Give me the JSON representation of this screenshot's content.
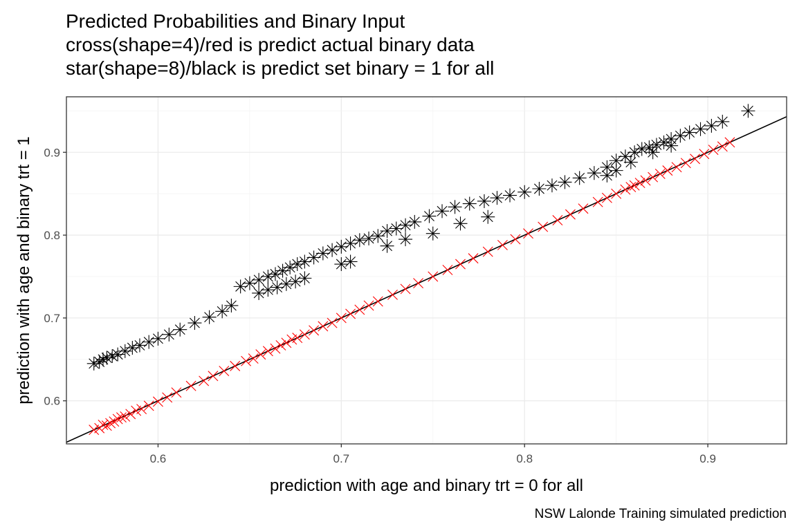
{
  "title_lines": [
    "Predicted Probabilities and Binary Input",
    "cross(shape=4)/red is predict actual binary data",
    "star(shape=8)/black is predict set binary = 1 for all"
  ],
  "chart_data": {
    "type": "scatter",
    "xlabel": "prediction with age and binary trt = 0 for all",
    "ylabel": "prediction with age and binary trt = 1",
    "caption": "NSW Lalonde Training simulated prediction",
    "xlim": [
      0.55,
      0.943
    ],
    "ylim": [
      0.548,
      0.967
    ],
    "x_ticks": [
      0.6,
      0.7,
      0.8,
      0.9
    ],
    "x_tick_labels": [
      "0.6",
      "0.7",
      "0.8",
      "0.9"
    ],
    "y_ticks": [
      0.6,
      0.7,
      0.8,
      0.9
    ],
    "y_tick_labels": [
      "0.6",
      "0.7",
      "0.8",
      "0.9"
    ],
    "grid": true,
    "reference_line": {
      "type": "identity",
      "slope": 1,
      "intercept": 0,
      "color": "#000000"
    },
    "series": [
      {
        "marker": "cross",
        "color": "#ff0000",
        "points": [
          [
            0.565,
            0.565
          ],
          [
            0.568,
            0.567
          ],
          [
            0.57,
            0.571
          ],
          [
            0.572,
            0.57
          ],
          [
            0.574,
            0.573
          ],
          [
            0.576,
            0.575
          ],
          [
            0.578,
            0.578
          ],
          [
            0.58,
            0.58
          ],
          [
            0.582,
            0.581
          ],
          [
            0.585,
            0.584
          ],
          [
            0.588,
            0.588
          ],
          [
            0.591,
            0.59
          ],
          [
            0.595,
            0.594
          ],
          [
            0.6,
            0.599
          ],
          [
            0.605,
            0.604
          ],
          [
            0.61,
            0.61
          ],
          [
            0.618,
            0.618
          ],
          [
            0.625,
            0.624
          ],
          [
            0.63,
            0.63
          ],
          [
            0.636,
            0.636
          ],
          [
            0.642,
            0.642
          ],
          [
            0.648,
            0.648
          ],
          [
            0.652,
            0.651
          ],
          [
            0.656,
            0.656
          ],
          [
            0.66,
            0.66
          ],
          [
            0.664,
            0.663
          ],
          [
            0.667,
            0.667
          ],
          [
            0.67,
            0.67
          ],
          [
            0.673,
            0.674
          ],
          [
            0.676,
            0.676
          ],
          [
            0.68,
            0.68
          ],
          [
            0.685,
            0.685
          ],
          [
            0.69,
            0.69
          ],
          [
            0.695,
            0.694
          ],
          [
            0.7,
            0.7
          ],
          [
            0.705,
            0.705
          ],
          [
            0.71,
            0.71
          ],
          [
            0.715,
            0.715
          ],
          [
            0.72,
            0.72
          ],
          [
            0.728,
            0.728
          ],
          [
            0.735,
            0.735
          ],
          [
            0.742,
            0.742
          ],
          [
            0.75,
            0.75
          ],
          [
            0.758,
            0.758
          ],
          [
            0.765,
            0.765
          ],
          [
            0.772,
            0.772
          ],
          [
            0.78,
            0.78
          ],
          [
            0.788,
            0.788
          ],
          [
            0.795,
            0.795
          ],
          [
            0.802,
            0.802
          ],
          [
            0.81,
            0.81
          ],
          [
            0.818,
            0.818
          ],
          [
            0.825,
            0.825
          ],
          [
            0.832,
            0.832
          ],
          [
            0.84,
            0.84
          ],
          [
            0.845,
            0.845
          ],
          [
            0.85,
            0.85
          ],
          [
            0.855,
            0.855
          ],
          [
            0.858,
            0.858
          ],
          [
            0.86,
            0.86
          ],
          [
            0.863,
            0.863
          ],
          [
            0.866,
            0.866
          ],
          [
            0.87,
            0.87
          ],
          [
            0.874,
            0.874
          ],
          [
            0.878,
            0.878
          ],
          [
            0.883,
            0.882
          ],
          [
            0.888,
            0.887
          ],
          [
            0.893,
            0.892
          ],
          [
            0.898,
            0.898
          ],
          [
            0.903,
            0.903
          ],
          [
            0.908,
            0.907
          ],
          [
            0.912,
            0.912
          ]
        ]
      },
      {
        "marker": "star",
        "color": "#000000",
        "points": [
          [
            0.565,
            0.645
          ],
          [
            0.568,
            0.647
          ],
          [
            0.57,
            0.65
          ],
          [
            0.572,
            0.652
          ],
          [
            0.575,
            0.654
          ],
          [
            0.578,
            0.656
          ],
          [
            0.582,
            0.66
          ],
          [
            0.586,
            0.664
          ],
          [
            0.59,
            0.667
          ],
          [
            0.595,
            0.671
          ],
          [
            0.6,
            0.675
          ],
          [
            0.606,
            0.68
          ],
          [
            0.612,
            0.686
          ],
          [
            0.62,
            0.694
          ],
          [
            0.628,
            0.701
          ],
          [
            0.635,
            0.708
          ],
          [
            0.64,
            0.715
          ],
          [
            0.645,
            0.738
          ],
          [
            0.65,
            0.742
          ],
          [
            0.655,
            0.746
          ],
          [
            0.66,
            0.75
          ],
          [
            0.664,
            0.753
          ],
          [
            0.668,
            0.757
          ],
          [
            0.672,
            0.761
          ],
          [
            0.676,
            0.765
          ],
          [
            0.68,
            0.768
          ],
          [
            0.685,
            0.773
          ],
          [
            0.69,
            0.778
          ],
          [
            0.695,
            0.782
          ],
          [
            0.7,
            0.786
          ],
          [
            0.705,
            0.79
          ],
          [
            0.71,
            0.794
          ],
          [
            0.715,
            0.796
          ],
          [
            0.72,
            0.799
          ],
          [
            0.725,
            0.805
          ],
          [
            0.73,
            0.808
          ],
          [
            0.735,
            0.812
          ],
          [
            0.74,
            0.816
          ],
          [
            0.748,
            0.823
          ],
          [
            0.755,
            0.829
          ],
          [
            0.762,
            0.834
          ],
          [
            0.77,
            0.838
          ],
          [
            0.778,
            0.841
          ],
          [
            0.785,
            0.845
          ],
          [
            0.792,
            0.848
          ],
          [
            0.8,
            0.852
          ],
          [
            0.808,
            0.856
          ],
          [
            0.815,
            0.86
          ],
          [
            0.822,
            0.864
          ],
          [
            0.83,
            0.869
          ],
          [
            0.838,
            0.875
          ],
          [
            0.845,
            0.882
          ],
          [
            0.85,
            0.89
          ],
          [
            0.855,
            0.895
          ],
          [
            0.86,
            0.9
          ],
          [
            0.864,
            0.904
          ],
          [
            0.868,
            0.906
          ],
          [
            0.872,
            0.909
          ],
          [
            0.876,
            0.912
          ],
          [
            0.88,
            0.916
          ],
          [
            0.885,
            0.92
          ],
          [
            0.89,
            0.924
          ],
          [
            0.896,
            0.928
          ],
          [
            0.902,
            0.932
          ],
          [
            0.908,
            0.937
          ],
          [
            0.922,
            0.95
          ],
          [
            0.655,
            0.73
          ],
          [
            0.66,
            0.734
          ],
          [
            0.665,
            0.737
          ],
          [
            0.67,
            0.741
          ],
          [
            0.675,
            0.744
          ],
          [
            0.68,
            0.748
          ],
          [
            0.7,
            0.765
          ],
          [
            0.705,
            0.768
          ],
          [
            0.725,
            0.787
          ],
          [
            0.735,
            0.795
          ],
          [
            0.75,
            0.802
          ],
          [
            0.765,
            0.814
          ],
          [
            0.78,
            0.822
          ],
          [
            0.845,
            0.872
          ],
          [
            0.85,
            0.878
          ],
          [
            0.858,
            0.888
          ],
          [
            0.87,
            0.9
          ],
          [
            0.88,
            0.908
          ]
        ]
      }
    ]
  }
}
